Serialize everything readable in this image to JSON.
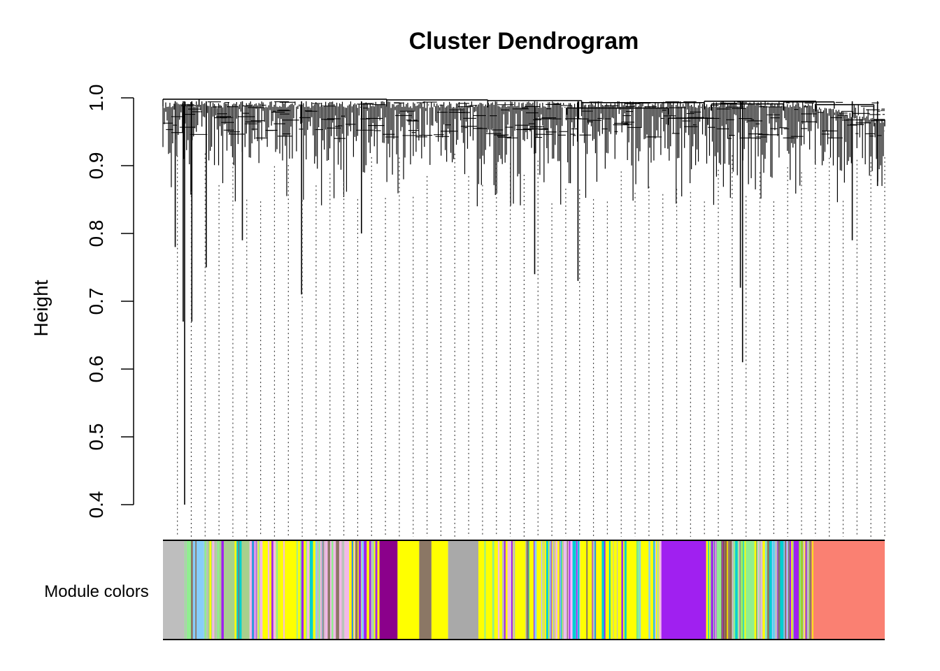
{
  "chart_data": {
    "type": "dendrogram",
    "title": "Cluster Dendrogram",
    "ylabel": "Height",
    "xlabel": "",
    "ylim": [
      0.4,
      1.0
    ],
    "yticks": [
      "0.4",
      "0.5",
      "0.6",
      "0.7",
      "0.8",
      "0.9",
      "1.0"
    ],
    "ytick_values": [
      0.4,
      0.5,
      0.6,
      0.7,
      0.8,
      0.9,
      1.0
    ],
    "color_bar_label": "Module colors",
    "top_merge_height": 0.997,
    "deep_branches": [
      {
        "position": 0.03,
        "height": 0.4
      },
      {
        "position": 0.028,
        "height": 0.67
      },
      {
        "position": 0.04,
        "height": 0.67
      },
      {
        "position": 0.017,
        "height": 0.78
      },
      {
        "position": 0.06,
        "height": 0.75
      },
      {
        "position": 0.11,
        "height": 0.79
      },
      {
        "position": 0.192,
        "height": 0.71
      },
      {
        "position": 0.275,
        "height": 0.8
      },
      {
        "position": 0.515,
        "height": 0.74
      },
      {
        "position": 0.575,
        "height": 0.73
      },
      {
        "position": 0.8,
        "height": 0.72
      },
      {
        "position": 0.803,
        "height": 0.61
      },
      {
        "position": 0.955,
        "height": 0.79
      },
      {
        "position": 0.99,
        "height": 0.87
      }
    ],
    "module_color_segments": [
      {
        "start": 0.0,
        "end": 0.03,
        "color": "#bebebe"
      },
      {
        "start": 0.03,
        "end": 0.04,
        "color": "#90ee90"
      },
      {
        "start": 0.04,
        "end": 0.057,
        "color": "#87cefa"
      },
      {
        "start": 0.057,
        "end": 0.12,
        "color": "#a8d08d"
      },
      {
        "start": 0.12,
        "end": 0.138,
        "color": "#f2b8e8"
      },
      {
        "start": 0.138,
        "end": 0.22,
        "color": "#ffff00"
      },
      {
        "start": 0.22,
        "end": 0.258,
        "color": "#f2b8e8"
      },
      {
        "start": 0.258,
        "end": 0.3,
        "color": "#ffff00"
      },
      {
        "start": 0.3,
        "end": 0.325,
        "color": "#8b008b"
      },
      {
        "start": 0.325,
        "end": 0.355,
        "color": "#ffff00"
      },
      {
        "start": 0.355,
        "end": 0.372,
        "color": "#8b7765"
      },
      {
        "start": 0.372,
        "end": 0.395,
        "color": "#ffff00"
      },
      {
        "start": 0.395,
        "end": 0.437,
        "color": "#a9a9a9"
      },
      {
        "start": 0.437,
        "end": 0.555,
        "color": "#ffff00"
      },
      {
        "start": 0.555,
        "end": 0.578,
        "color": "#ffbbff"
      },
      {
        "start": 0.578,
        "end": 0.69,
        "color": "#ffff00"
      },
      {
        "start": 0.69,
        "end": 0.753,
        "color": "#a020f0"
      },
      {
        "start": 0.753,
        "end": 0.775,
        "color": "#90ee90"
      },
      {
        "start": 0.775,
        "end": 0.788,
        "color": "#8b4c39"
      },
      {
        "start": 0.788,
        "end": 0.838,
        "color": "#90ee90"
      },
      {
        "start": 0.838,
        "end": 0.86,
        "color": "#00ced1"
      },
      {
        "start": 0.86,
        "end": 0.88,
        "color": "#a020f0"
      },
      {
        "start": 0.88,
        "end": 0.898,
        "color": "#9acd32"
      },
      {
        "start": 0.898,
        "end": 1.0,
        "color": "#fa8072"
      }
    ]
  }
}
